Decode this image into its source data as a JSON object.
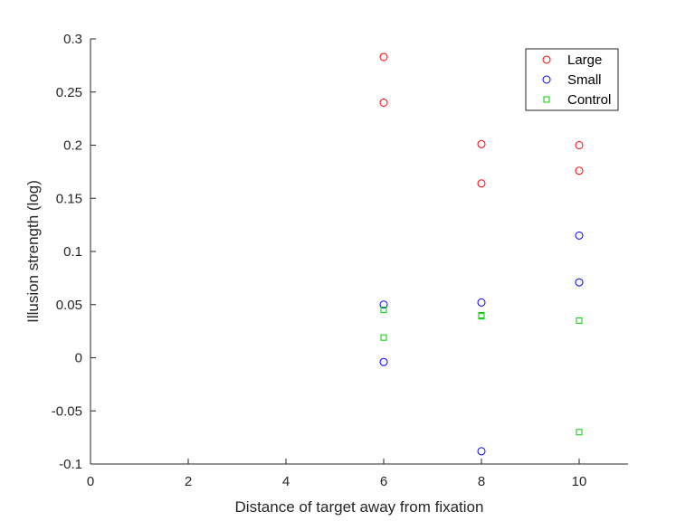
{
  "chart_data": {
    "type": "scatter",
    "xlabel": "Distance of target away from fixation",
    "ylabel": "Illusion strength (log)",
    "xlim": [
      0,
      11
    ],
    "ylim": [
      -0.1,
      0.3
    ],
    "x_ticks": [
      0,
      2,
      4,
      6,
      8,
      10
    ],
    "x_tick_labels": [
      "0",
      "2",
      "4",
      "6",
      "8",
      "10"
    ],
    "y_ticks": [
      -0.1,
      -0.05,
      0,
      0.05,
      0.1,
      0.15,
      0.2,
      0.25,
      0.3
    ],
    "y_tick_labels": [
      "-0.1",
      "-0.05",
      "0",
      "0.05",
      "0.1",
      "0.15",
      "0.2",
      "0.25",
      "0.3"
    ],
    "grid": false,
    "legend_position": "top-right",
    "series": [
      {
        "name": "Large",
        "marker": "circle",
        "color": "#ff0000",
        "x": [
          6,
          6,
          8,
          8,
          10,
          10
        ],
        "y": [
          0.283,
          0.24,
          0.201,
          0.164,
          0.2,
          0.176
        ]
      },
      {
        "name": "Small",
        "marker": "circle",
        "color": "#0000ff",
        "x": [
          6,
          6,
          8,
          8,
          10,
          10
        ],
        "y": [
          0.05,
          -0.004,
          0.052,
          -0.088,
          0.115,
          0.071
        ]
      },
      {
        "name": "Control",
        "marker": "square",
        "color": "#00cc00",
        "x": [
          6,
          6,
          8,
          8,
          10,
          10
        ],
        "y": [
          0.045,
          0.019,
          0.04,
          0.039,
          0.035,
          -0.07
        ]
      }
    ]
  }
}
